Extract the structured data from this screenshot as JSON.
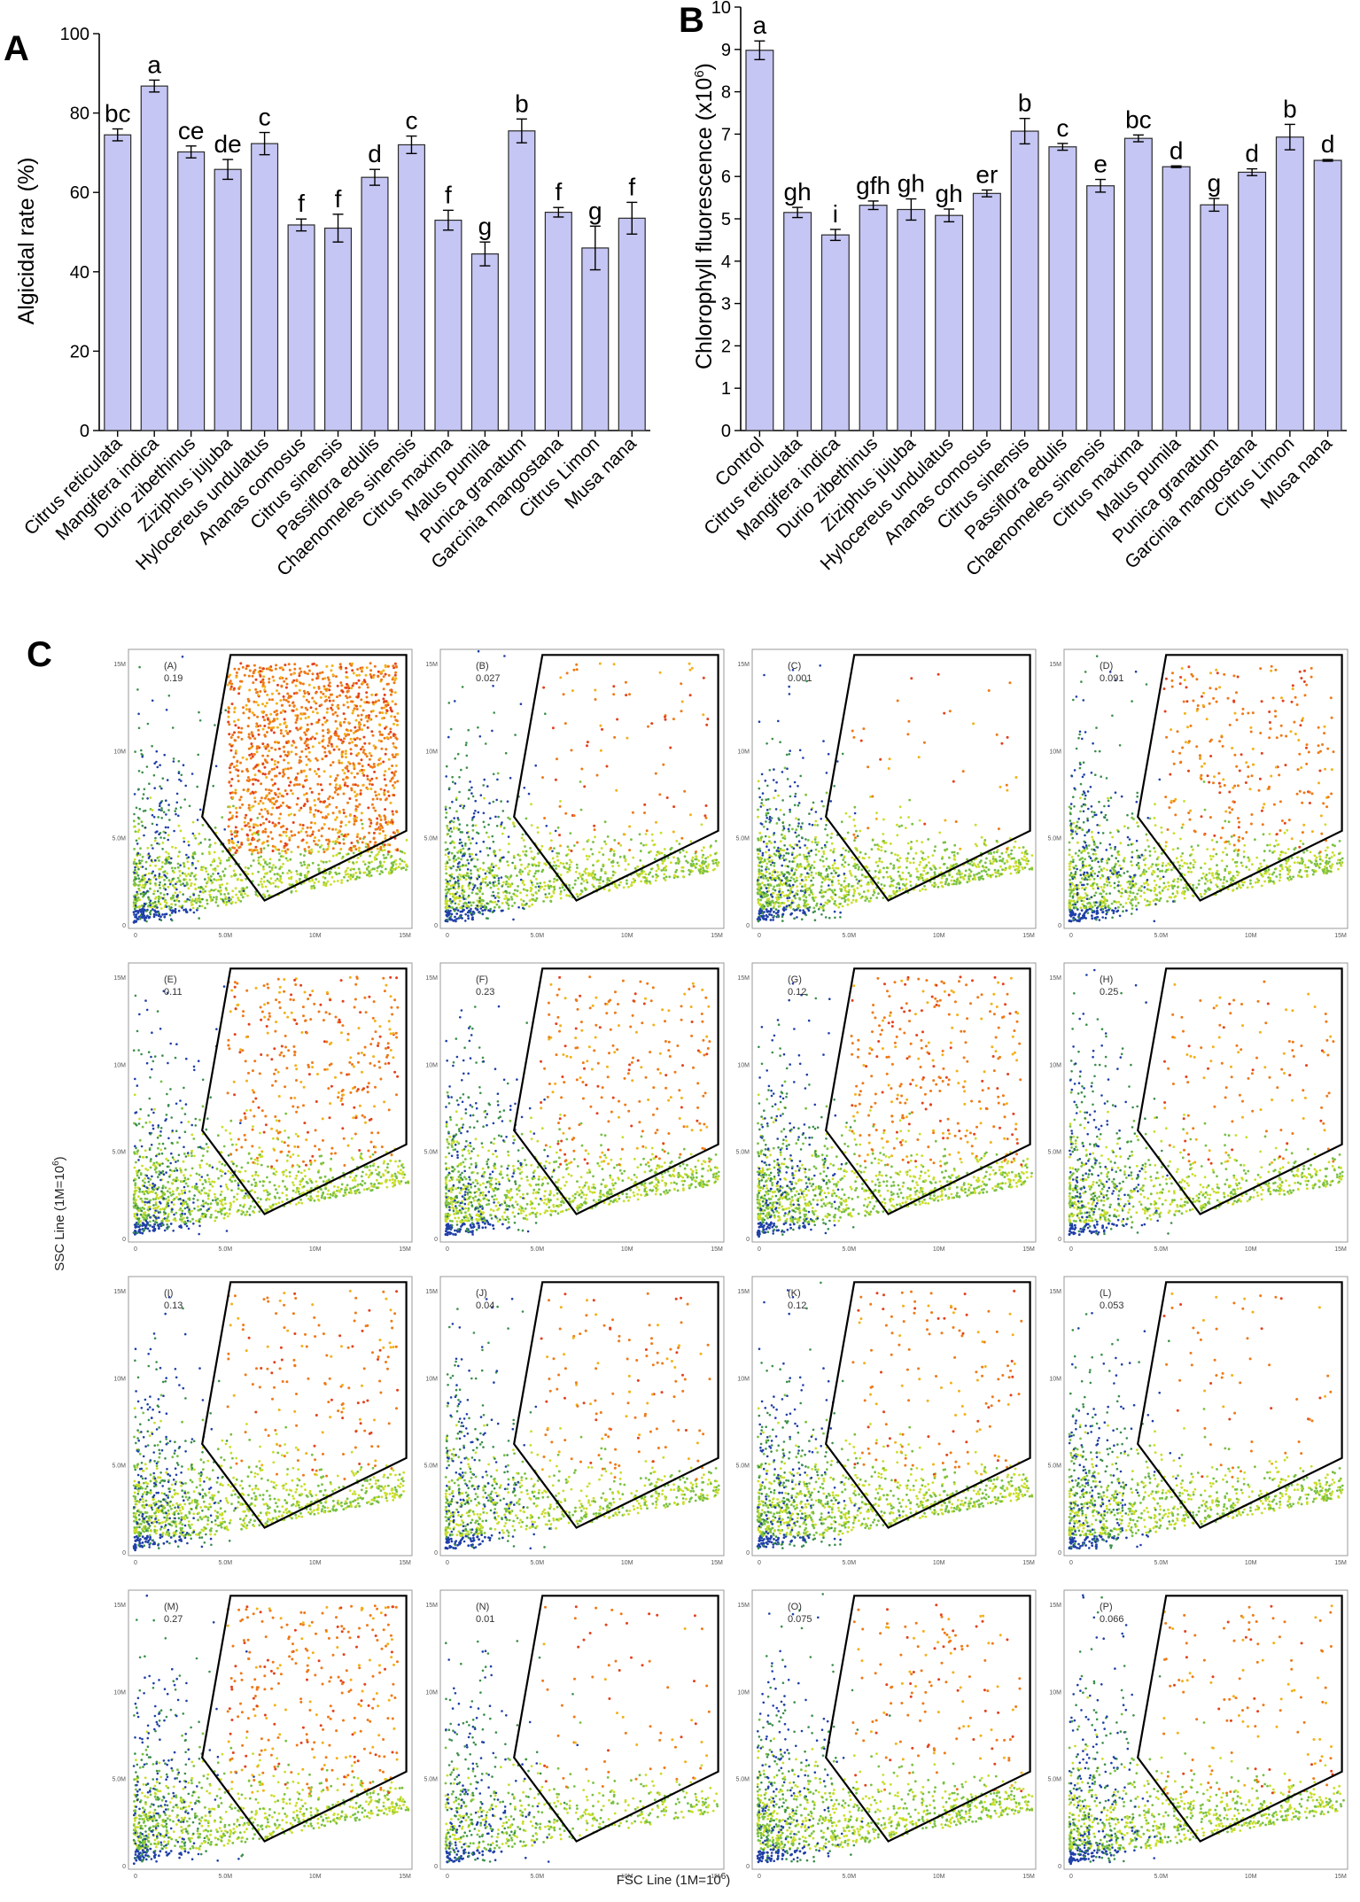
{
  "figure": {
    "panel_labels": [
      "A",
      "B",
      "C"
    ]
  },
  "chart_data": [
    {
      "id": "A",
      "type": "bar",
      "title": "",
      "xlabel": "",
      "ylabel": "Algicidal rate (%)",
      "ylim": [
        0,
        100
      ],
      "yticks": [
        0,
        20,
        40,
        60,
        80,
        100
      ],
      "categories": [
        "Citrus reticulata",
        "Mangifera indica",
        "Durio zibethinus",
        "Ziziphus jujuba",
        "Hylocereus undulatus",
        "Ananas comosus",
        "Citrus sinensis",
        "Passiflora edulis",
        "Chaenomeles sinensis",
        "Citrus maxima",
        "Malus pumila",
        "Punica granatum",
        "Garcinia mangostana",
        "Citrus Limon",
        "Musa nana"
      ],
      "values": [
        74.5,
        86.8,
        70.2,
        65.8,
        72.3,
        51.8,
        51.0,
        63.8,
        72.0,
        53.0,
        44.5,
        75.5,
        55.0,
        46.0,
        53.5
      ],
      "errors": [
        1.5,
        1.5,
        1.5,
        2.5,
        2.8,
        1.5,
        3.5,
        2.0,
        2.2,
        2.5,
        3.0,
        3.0,
        1.2,
        5.5,
        4.0
      ],
      "significance": [
        "bc",
        "a",
        "ce",
        "de",
        "c",
        "f",
        "f",
        "d",
        "c",
        "f",
        "g",
        "b",
        "f",
        "g",
        "f"
      ],
      "bar_color": "#c5c6f3"
    },
    {
      "id": "B",
      "type": "bar",
      "title": "",
      "xlabel": "",
      "ylabel": "Chlorophyll fluorescence (x10",
      "ylabel_sup": "6",
      "ylabel_end": ")",
      "ylim": [
        0,
        10
      ],
      "yticks": [
        0,
        1,
        2,
        3,
        4,
        5,
        6,
        7,
        8,
        9,
        10
      ],
      "categories": [
        "Control",
        "Citrus reticulata",
        "Mangifera indica",
        "Durio zibethinus",
        "Ziziphus jujuba",
        "Hylocereus undulatus",
        "Ananas comosus",
        "Citrus sinensis",
        "Passiflora edulis",
        "Chaenomeles sinensis",
        "Citrus maxima",
        "Malus pumila",
        "Punica granatum",
        "Garcinia mangostana",
        "Citrus Limon",
        "Musa nana"
      ],
      "values": [
        8.98,
        5.15,
        4.62,
        5.32,
        5.22,
        5.08,
        5.6,
        7.07,
        6.7,
        5.78,
        6.9,
        6.23,
        5.33,
        6.1,
        6.93,
        6.38
      ],
      "errors": [
        0.22,
        0.12,
        0.13,
        0.1,
        0.25,
        0.15,
        0.08,
        0.3,
        0.08,
        0.15,
        0.08,
        0.02,
        0.15,
        0.08,
        0.3,
        0.02
      ],
      "significance": [
        "a",
        "gh",
        "i",
        "gfh",
        "gh",
        "gh",
        "er",
        "b",
        "c",
        "e",
        "bc",
        "d",
        "g",
        "d",
        "b",
        "d"
      ],
      "bar_color": "#c5c6f3"
    },
    {
      "id": "C",
      "type": "scatter",
      "xlabel": "FSC Line (1M=10",
      "xlabel_sup": "6",
      "xlabel_end": ")",
      "ylabel": "SSC Line (1M=10",
      "ylabel_sup": "6",
      "ylabel_end": ")",
      "xticks": [
        "0",
        "5.0M",
        "10M",
        "15M"
      ],
      "yticks": [
        "0",
        "5.0M",
        "10M",
        "15M"
      ],
      "colors": [
        "#1f3fa8",
        "#3b8f4a",
        "#79c043",
        "#c9de2a",
        "#f2b21a",
        "#ee7a19",
        "#e3421e"
      ],
      "gate_color": "#000000",
      "subplots": [
        {
          "label": "(A)",
          "value": "0.19"
        },
        {
          "label": "(B)",
          "value": "0.027"
        },
        {
          "label": "(C)",
          "value": "0.001"
        },
        {
          "label": "(D)",
          "value": "0.091"
        },
        {
          "label": "(E)",
          "value": "0.11"
        },
        {
          "label": "(F)",
          "value": "0.23"
        },
        {
          "label": "(G)",
          "value": "0.12"
        },
        {
          "label": "(H)",
          "value": "0.25"
        },
        {
          "label": "(I)",
          "value": "0.13"
        },
        {
          "label": "(J)",
          "value": "0.04"
        },
        {
          "label": "(K)",
          "value": "0.12"
        },
        {
          "label": "(L)",
          "value": "0.053"
        },
        {
          "label": "(M)",
          "value": "0.27"
        },
        {
          "label": "(N)",
          "value": "0.01"
        },
        {
          "label": "(O)",
          "value": "0.075"
        },
        {
          "label": "(P)",
          "value": "0.066"
        }
      ]
    }
  ]
}
